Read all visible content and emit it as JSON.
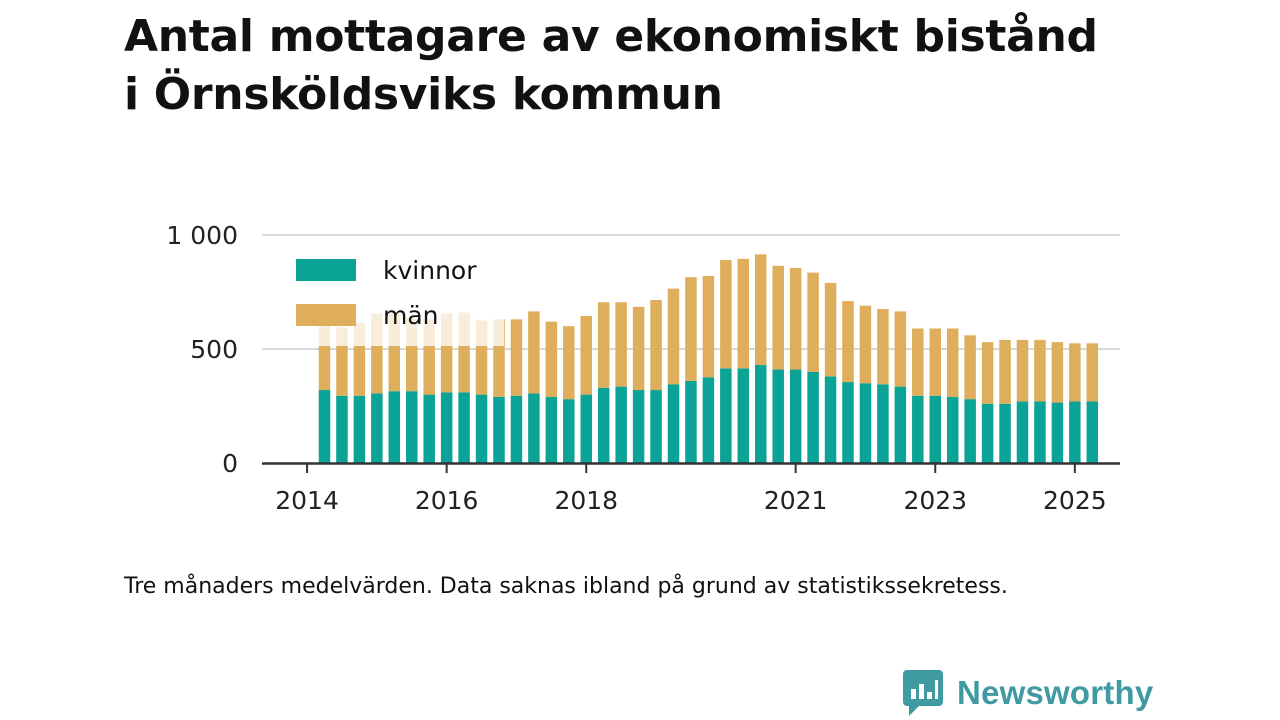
{
  "title": {
    "line1": "Antal mottagare av ekonomiskt bistånd",
    "line2": "i Örnsköldsviks kommun"
  },
  "note": "Tre månaders medelvärden. Data saknas ibland på grund av statistikssekretess.",
  "brand": {
    "name": "Newsworthy",
    "icon": "newsworthy-logo-icon",
    "color": "#3f9aa1"
  },
  "chart_data": {
    "type": "bar",
    "stacked": true,
    "x_unit": "quarter",
    "categories": [
      "2014-Q2",
      "2014-Q3",
      "2014-Q4",
      "2015-Q1",
      "2015-Q2",
      "2015-Q3",
      "2015-Q4",
      "2016-Q1",
      "2016-Q2",
      "2016-Q3",
      "2016-Q4",
      "2017-Q1",
      "2017-Q2",
      "2017-Q3",
      "2017-Q4",
      "2018-Q1",
      "2018-Q2",
      "2018-Q3",
      "2018-Q4",
      "2019-Q1",
      "2019-Q2",
      "2019-Q3",
      "2019-Q4",
      "2020-Q1",
      "2020-Q2",
      "2020-Q3",
      "2020-Q4",
      "2021-Q1",
      "2021-Q2",
      "2021-Q3",
      "2021-Q4",
      "2022-Q1",
      "2022-Q2",
      "2022-Q3",
      "2022-Q4",
      "2023-Q1",
      "2023-Q2",
      "2023-Q3",
      "2023-Q4",
      "2024-Q1",
      "2024-Q2",
      "2024-Q3",
      "2024-Q4",
      "2025-Q1",
      "2025-Q2"
    ],
    "series": [
      {
        "name": "kvinnor",
        "color": "#0aa396",
        "values": [
          320,
          295,
          295,
          305,
          315,
          315,
          300,
          310,
          310,
          300,
          290,
          295,
          305,
          290,
          280,
          300,
          330,
          335,
          320,
          320,
          345,
          360,
          375,
          415,
          415,
          430,
          410,
          410,
          400,
          380,
          355,
          350,
          345,
          335,
          295,
          295,
          290,
          280,
          260,
          260,
          270,
          270,
          265,
          270,
          270
        ]
      },
      {
        "name": "män",
        "color": "#dfae5c",
        "values": [
          280,
          300,
          320,
          350,
          340,
          320,
          330,
          345,
          350,
          325,
          340,
          335,
          360,
          330,
          320,
          345,
          375,
          370,
          365,
          395,
          420,
          455,
          445,
          475,
          480,
          485,
          455,
          445,
          435,
          410,
          355,
          340,
          330,
          330,
          295,
          295,
          300,
          280,
          270,
          280,
          270,
          270,
          265,
          255,
          255
        ]
      }
    ],
    "x_ticks": [
      {
        "label": "2014",
        "category": "2014-Q1"
      },
      {
        "label": "2016",
        "category": "2016-Q1"
      },
      {
        "label": "2018",
        "category": "2018-Q1"
      },
      {
        "label": "2021",
        "category": "2021-Q1"
      },
      {
        "label": "2023",
        "category": "2023-Q1"
      },
      {
        "label": "2025",
        "category": "2025-Q1"
      }
    ],
    "y_ticks": [
      {
        "value": 0,
        "label": "0"
      },
      {
        "value": 500,
        "label": "500"
      },
      {
        "value": 1000,
        "label": "1 000"
      }
    ],
    "ylim": [
      0,
      1000
    ],
    "grid": true,
    "legend_position": "top-left",
    "xlabel": "",
    "ylabel": ""
  }
}
